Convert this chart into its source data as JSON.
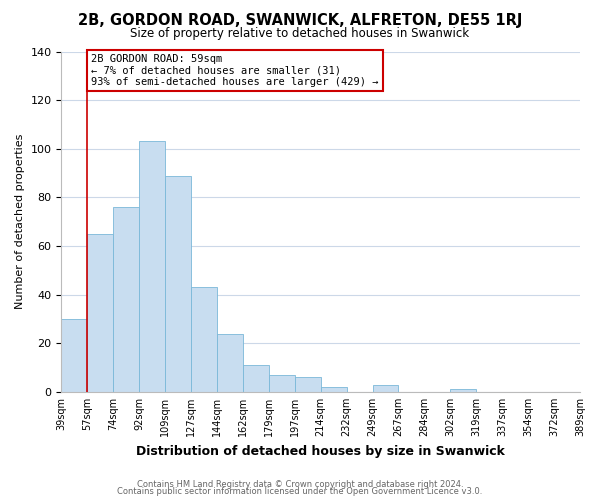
{
  "title": "2B, GORDON ROAD, SWANWICK, ALFRETON, DE55 1RJ",
  "subtitle": "Size of property relative to detached houses in Swanwick",
  "xlabel": "Distribution of detached houses by size in Swanwick",
  "ylabel": "Number of detached properties",
  "bar_values": [
    30,
    65,
    76,
    103,
    89,
    43,
    24,
    11,
    7,
    6,
    2,
    0,
    3,
    0,
    0,
    1,
    0,
    0,
    0,
    0
  ],
  "bin_labels": [
    "39sqm",
    "57sqm",
    "74sqm",
    "92sqm",
    "109sqm",
    "127sqm",
    "144sqm",
    "162sqm",
    "179sqm",
    "197sqm",
    "214sqm",
    "232sqm",
    "249sqm",
    "267sqm",
    "284sqm",
    "302sqm",
    "319sqm",
    "337sqm",
    "354sqm",
    "372sqm",
    "389sqm"
  ],
  "bar_color": "#c8ddf0",
  "bar_edge_color": "#7ab8d8",
  "reference_line_x": 1,
  "reference_line_color": "#cc0000",
  "annotation_text": "2B GORDON ROAD: 59sqm\n← 7% of detached houses are smaller (31)\n93% of semi-detached houses are larger (429) →",
  "annotation_box_color": "#ffffff",
  "annotation_box_edge": "#cc0000",
  "ylim": [
    0,
    140
  ],
  "yticks": [
    0,
    20,
    40,
    60,
    80,
    100,
    120,
    140
  ],
  "footer1": "Contains HM Land Registry data © Crown copyright and database right 2024.",
  "footer2": "Contains public sector information licensed under the Open Government Licence v3.0.",
  "bg_color": "#ffffff",
  "grid_color": "#ccd8e8"
}
